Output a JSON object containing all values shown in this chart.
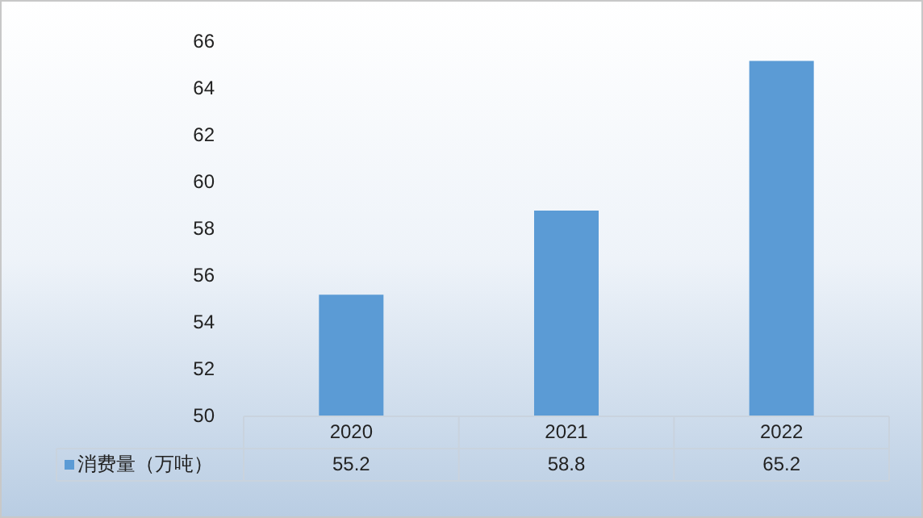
{
  "chart_data": {
    "type": "bar",
    "categories": [
      "2020",
      "2021",
      "2022"
    ],
    "series": [
      {
        "name": "消费量（万吨）",
        "color": "#5b9bd5",
        "values": [
          55.2,
          58.8,
          65.2
        ]
      }
    ],
    "ylim": [
      50,
      66
    ],
    "yticks": [
      50,
      52,
      54,
      56,
      58,
      60,
      62,
      64,
      66
    ],
    "grid": false,
    "legend": "bottom left",
    "data_labels": true
  }
}
